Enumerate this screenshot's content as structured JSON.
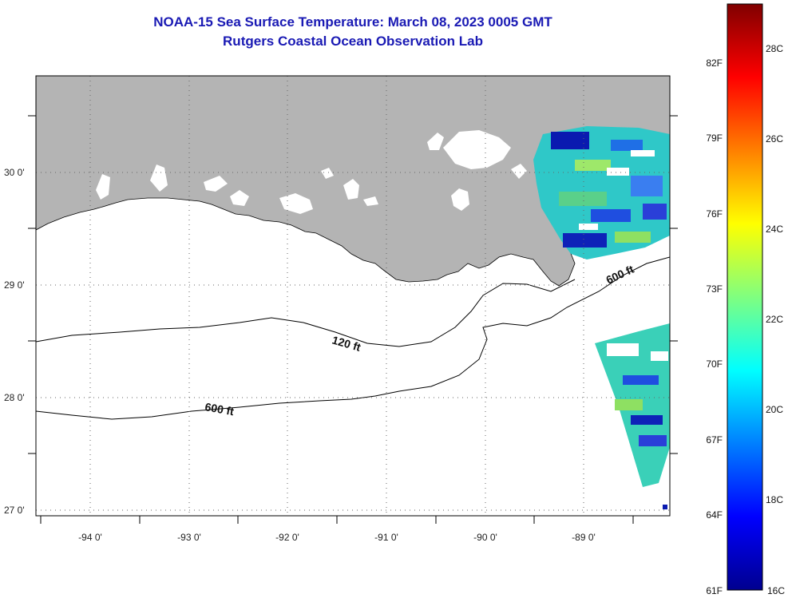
{
  "title": {
    "line1": "NOAA-15 Sea Surface Temperature:  March 08, 2023 0005 GMT",
    "line2": "Rutgers Coastal Ocean Observation Lab"
  },
  "map": {
    "lon_range": [
      -94.55,
      -88.35
    ],
    "lat_range": [
      26.95,
      30.85
    ],
    "lon_ticks": [
      {
        "value": -94,
        "label": "-94 0'"
      },
      {
        "value": -93,
        "label": "-93 0'"
      },
      {
        "value": -92,
        "label": "-92 0'"
      },
      {
        "value": -91,
        "label": "-91 0'"
      },
      {
        "value": -90,
        "label": "-90 0'"
      },
      {
        "value": -89,
        "label": "-89 0'"
      }
    ],
    "lat_ticks": [
      {
        "value": 30,
        "label": "30 0'"
      },
      {
        "value": 29,
        "label": "29 0'"
      },
      {
        "value": 28,
        "label": "28 0'"
      },
      {
        "value": 27,
        "label": "27 0'"
      }
    ],
    "isobath_labels": [
      "120 ft",
      "600 ft",
      "600 ft"
    ],
    "land_color": "#b4b4b4",
    "ocean_color": "#ffffff"
  },
  "colorbar": {
    "fahrenheit_labels": [
      "82F",
      "79F",
      "76F",
      "73F",
      "70F",
      "67F",
      "64F",
      "61F"
    ],
    "celsius_labels": [
      "28C",
      "26C",
      "24C",
      "22C",
      "20C",
      "18C",
      "16C"
    ],
    "min_c": 16,
    "max_c": 29.5,
    "colormap": "jet"
  }
}
